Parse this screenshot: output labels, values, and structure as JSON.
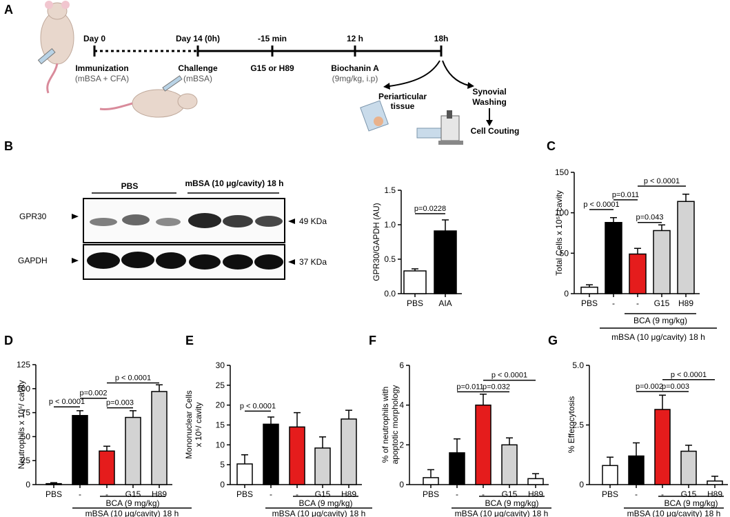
{
  "panel_letters": {
    "a": "A",
    "b": "B",
    "c": "C",
    "d": "D",
    "e": "E",
    "f": "F",
    "g": "G"
  },
  "timeline": {
    "day0": "Day 0",
    "day14": "Day 14 (0h)",
    "m15": "-15 min",
    "h12": "12 h",
    "h18": "18h",
    "immunization": "Immunization",
    "immunization_sub": "(mBSA + CFA)",
    "challenge": "Challenge",
    "challenge_sub": "(mBSA)",
    "g15_h89": "G15 or H89",
    "biochanin": "Biochanin A",
    "biochanin_dose": "(9mg/kg, i.p)",
    "periarticular_1": "Periarticular",
    "periarticular_2": "tissue",
    "synovial_1": "Synovial",
    "synovial_2": "Washing",
    "cell_counting": "Cell Couting"
  },
  "blot": {
    "pbs_label": "PBS",
    "mbsa_label": "mBSA (10 μg/cavity) 18 h",
    "gpr30": "GPR30",
    "gapdh": "GAPDH",
    "kda49": "49 KDa",
    "kda37": "37 KDa"
  },
  "treat": {
    "bca": "BCA (9 mg/kg)",
    "mbsa": "mBSA (10 μg/cavity) 18 h"
  },
  "colors": {
    "white": "#ffffff",
    "black": "#000000",
    "red": "#e51c1c",
    "gray": "#d3d3d3"
  },
  "chart_data": [
    {
      "id": "B",
      "type": "bar",
      "ylabel": "GPR30/GAPDH (AU)",
      "categories": [
        "PBS",
        "AIA"
      ],
      "values": [
        0.33,
        0.91
      ],
      "errors": [
        0.03,
        0.16
      ],
      "fills": [
        "white",
        "black"
      ],
      "ylim": [
        0,
        1.5
      ],
      "yticks": [
        0.0,
        0.5,
        1.0,
        1.5
      ],
      "yticklabels": [
        "0.0",
        "0.5",
        "1.0",
        "1.5"
      ],
      "annotations": [
        {
          "text": "p=0.0228",
          "from": 0,
          "to": 1,
          "y": 1.16
        }
      ]
    },
    {
      "id": "C",
      "type": "bar",
      "ylabel": "Total Cells x 10⁵/ cavity",
      "categories": [
        "PBS",
        "-",
        "-",
        "G15",
        "H89"
      ],
      "values": [
        8,
        88,
        49,
        78,
        114
      ],
      "errors": [
        3,
        6,
        7,
        7,
        9
      ],
      "fills": [
        "white",
        "black",
        "red",
        "gray",
        "gray"
      ],
      "ylim": [
        0,
        150
      ],
      "yticks": [
        0,
        50,
        100,
        150
      ],
      "yticklabels": [
        "0",
        "50",
        "100",
        "150"
      ],
      "annotations": [
        {
          "text": "p < 0.0001",
          "from": 0,
          "to": 1,
          "y": 104
        },
        {
          "text": "p=0.011",
          "from": 1,
          "to": 2,
          "y": 116
        },
        {
          "text": "p=0.043",
          "from": 2,
          "to": 3,
          "y": 88
        },
        {
          "text": "p < 0.0001",
          "from": 2,
          "to": 4,
          "y": 133
        }
      ]
    },
    {
      "id": "D",
      "type": "bar",
      "ylabel": "Neutrophils x 10⁵/ cavity",
      "categories": [
        "PBS",
        "-",
        "-",
        "G15",
        "H89"
      ],
      "values": [
        1,
        72,
        35,
        70,
        97
      ],
      "errors": [
        1,
        5,
        5,
        7,
        7
      ],
      "fills": [
        "white",
        "black",
        "red",
        "gray",
        "gray"
      ],
      "ylim": [
        0,
        125
      ],
      "yticks": [
        0,
        25,
        50,
        75,
        100,
        125
      ],
      "yticklabels": [
        "0",
        "25",
        "50",
        "75",
        "100",
        "125"
      ],
      "annotations": [
        {
          "text": "p < 0.0001",
          "from": 0,
          "to": 1,
          "y": 81
        },
        {
          "text": "p=0.002",
          "from": 1,
          "to": 2,
          "y": 90
        },
        {
          "text": "p=0.003",
          "from": 2,
          "to": 3,
          "y": 80
        },
        {
          "text": "p < 0.0001",
          "from": 2,
          "to": 4,
          "y": 106
        }
      ]
    },
    {
      "id": "E",
      "type": "bar",
      "ylabel": "Mononuclear Cells x 10⁵/ cavity",
      "categories": [
        "PBS",
        "-",
        "-",
        "G15",
        "H89"
      ],
      "values": [
        5.2,
        15.2,
        14.5,
        9.2,
        16.5
      ],
      "errors": [
        2.3,
        1.8,
        3.6,
        2.8,
        2.2
      ],
      "fills": [
        "white",
        "black",
        "red",
        "gray",
        "gray"
      ],
      "ylim": [
        0,
        30
      ],
      "yticks": [
        0,
        5,
        10,
        15,
        20,
        25,
        30
      ],
      "yticklabels": [
        "0",
        "5",
        "10",
        "15",
        "20",
        "25",
        "30"
      ],
      "annotations": [
        {
          "text": "p < 0.0001",
          "from": 0,
          "to": 1,
          "y": 18.5
        }
      ]
    },
    {
      "id": "F",
      "type": "bar",
      "ylabel": "% of neutrophils with apoptotic morphology",
      "categories": [
        "PBS",
        "-",
        "-",
        "G15",
        "H89"
      ],
      "values": [
        0.35,
        1.6,
        4.0,
        2.0,
        0.3
      ],
      "errors": [
        0.4,
        0.7,
        0.55,
        0.35,
        0.25
      ],
      "fills": [
        "white",
        "black",
        "red",
        "gray",
        "white"
      ],
      "ylim": [
        0,
        6
      ],
      "yticks": [
        0,
        2,
        4,
        6
      ],
      "yticklabels": [
        "0",
        "2",
        "4",
        "6"
      ],
      "annotations": [
        {
          "text": "p=0.011",
          "from": 1,
          "to": 2,
          "y": 4.67
        },
        {
          "text": "p=0.032",
          "from": 2,
          "to": 3,
          "y": 4.67
        },
        {
          "text": "p < 0.0001",
          "from": 2,
          "to": 4,
          "y": 5.25
        }
      ]
    },
    {
      "id": "G",
      "type": "bar",
      "ylabel": "% Efferocytosis",
      "categories": [
        "PBS",
        "-",
        "-",
        "G15",
        "H89"
      ],
      "values": [
        0.8,
        1.2,
        3.15,
        1.4,
        0.15
      ],
      "errors": [
        0.35,
        0.55,
        0.6,
        0.25,
        0.2
      ],
      "fills": [
        "white",
        "black",
        "red",
        "gray",
        "white"
      ],
      "ylim": [
        0,
        5.0
      ],
      "yticks": [
        0,
        2.5,
        5.0
      ],
      "yticklabels": [
        "0",
        "2.5",
        "5.0"
      ],
      "annotations": [
        {
          "text": "p=0.002",
          "from": 1,
          "to": 2,
          "y": 3.9
        },
        {
          "text": "p=0.003",
          "from": 2,
          "to": 3,
          "y": 3.9
        },
        {
          "text": "p < 0.0001",
          "from": 2,
          "to": 4,
          "y": 4.4
        }
      ]
    }
  ]
}
